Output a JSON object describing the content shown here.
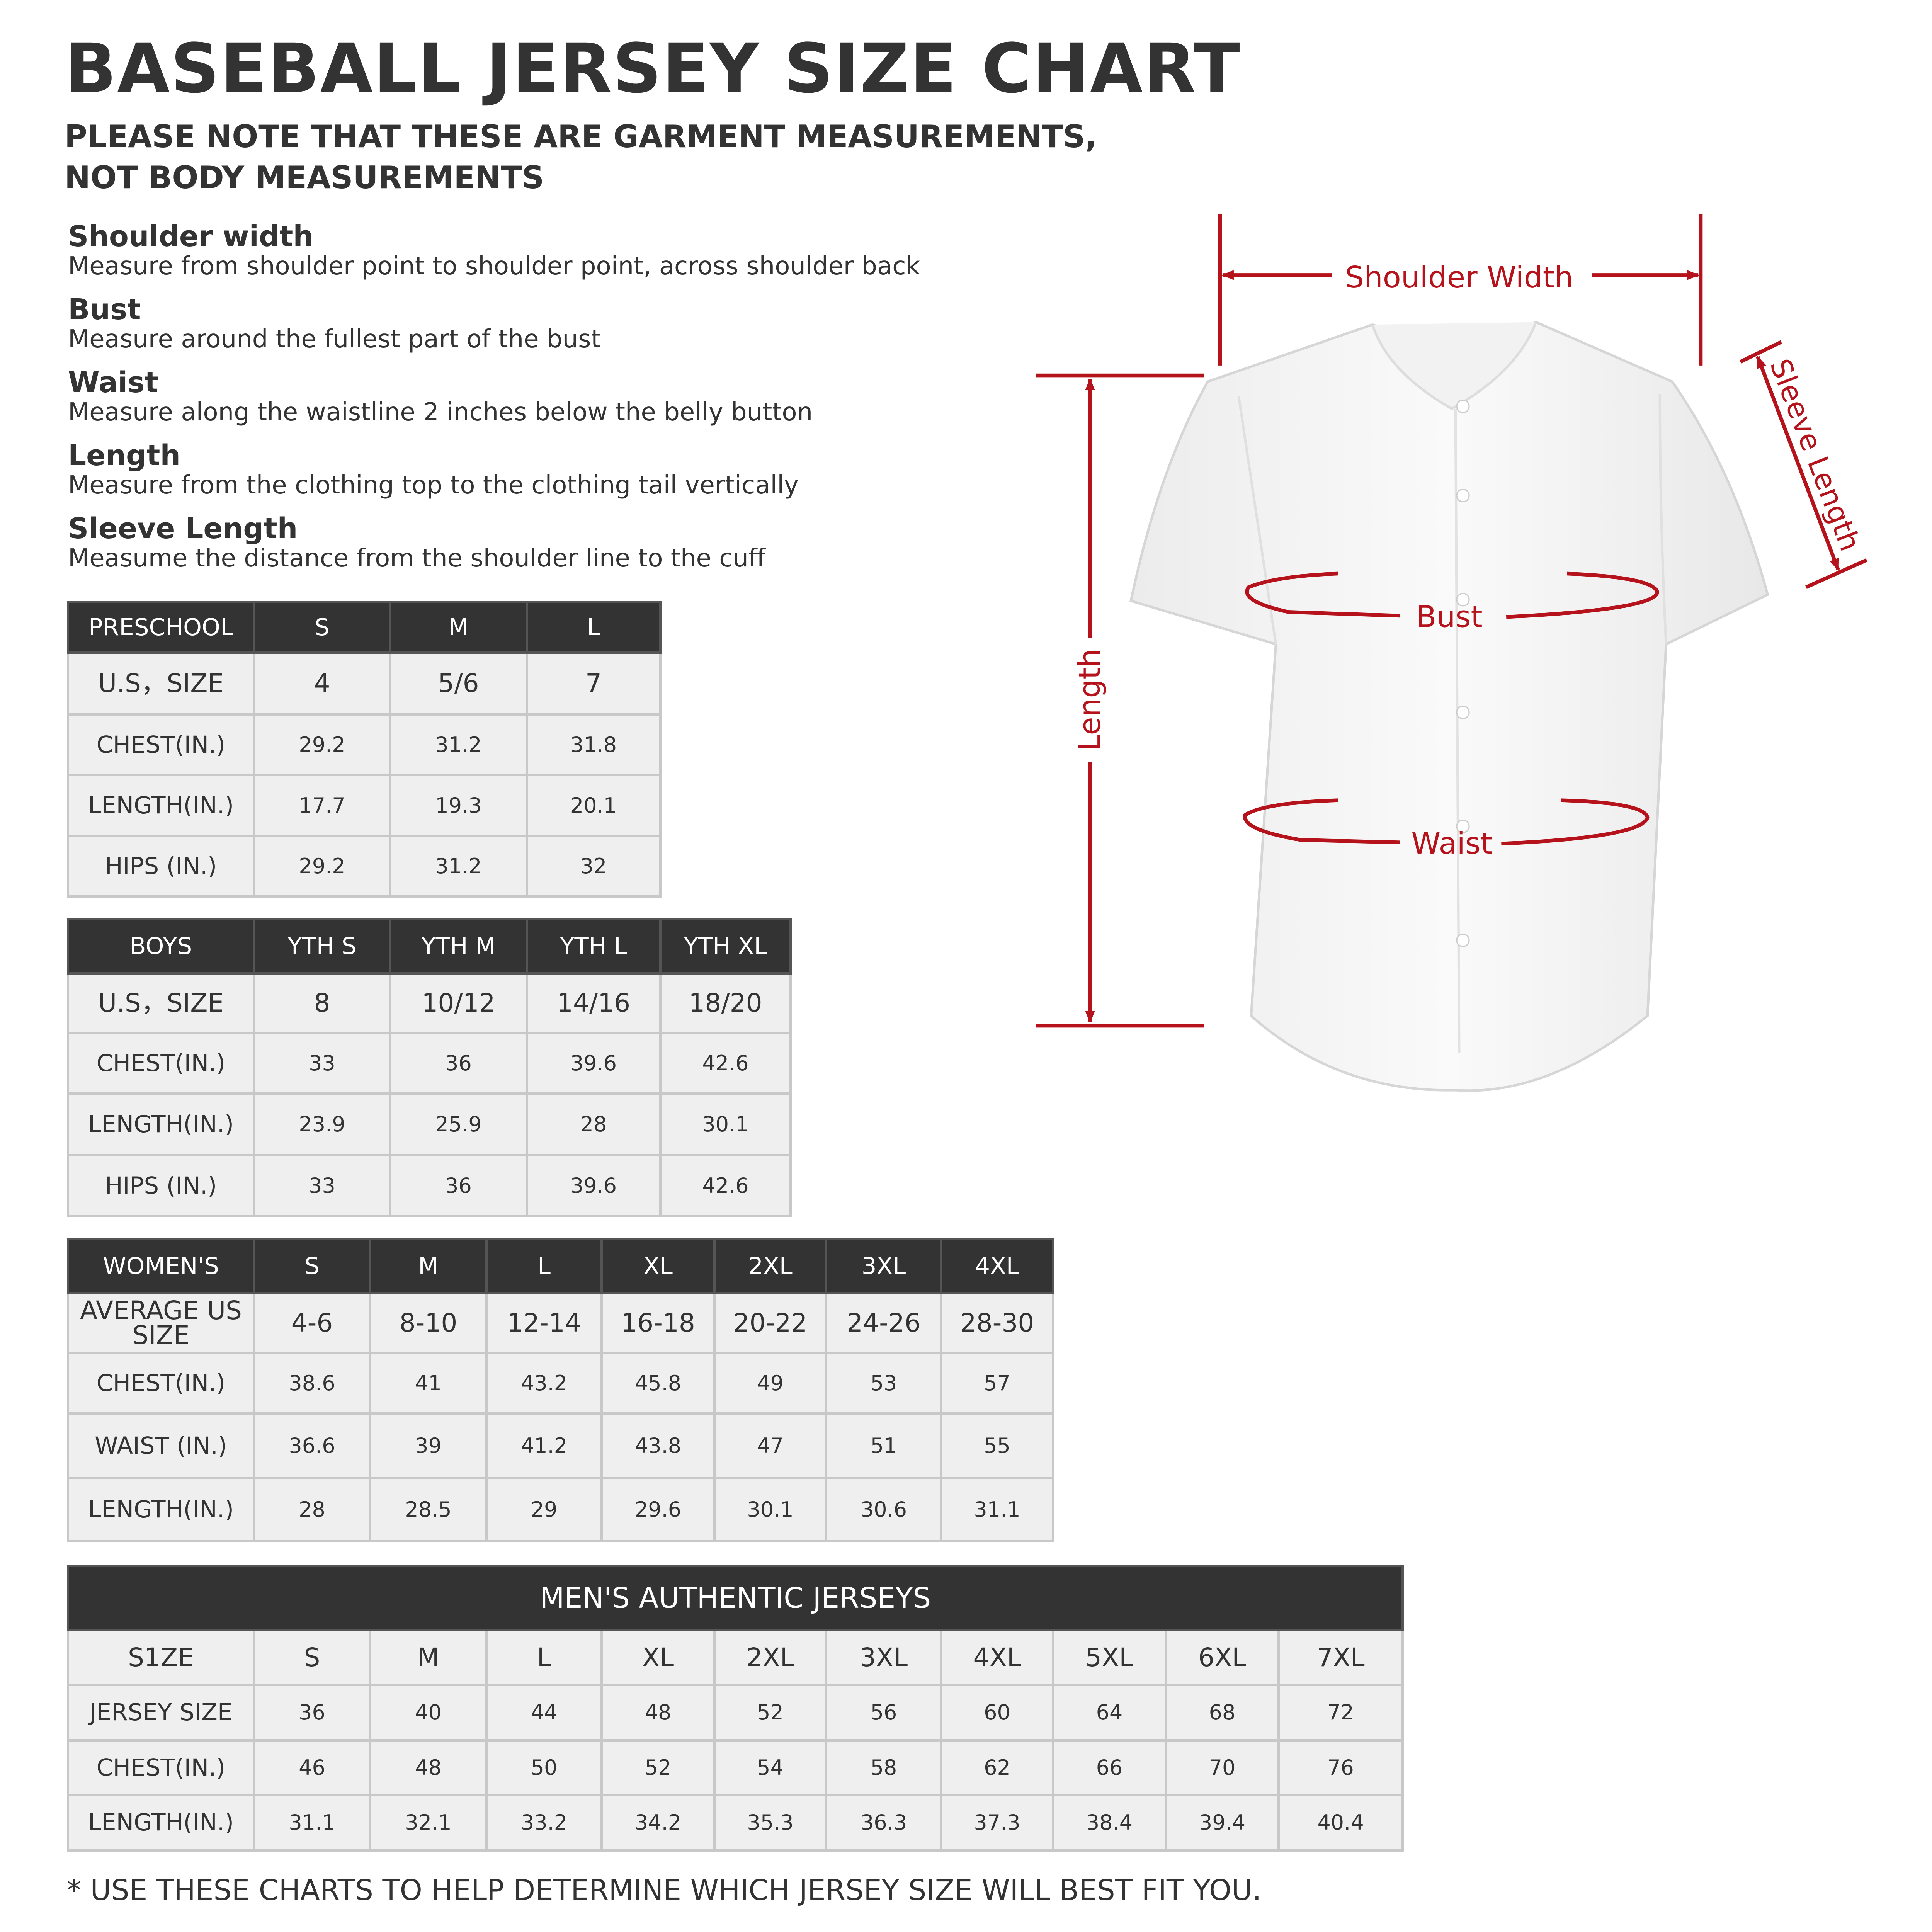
{
  "title": "BASEBALL JERSEY SIZE CHART",
  "subtitle": [
    "PLEASE NOTE THAT THESE ARE GARMENT MEASUREMENTS,",
    "NOT BODY MEASUREMENTS"
  ],
  "definitions": [
    {
      "term": "Shoulder width",
      "desc": "Measure from shoulder point to shoulder point, across shoulder back"
    },
    {
      "term": "Bust",
      "desc": "Measure around the fullest part of the bust"
    },
    {
      "term": "Waist",
      "desc": "Measure along the waistline 2 inches below the belly button"
    },
    {
      "term": "Length",
      "desc": "Measure from the clothing top to the clothing tail vertically"
    },
    {
      "term": "Sleeve Length",
      "desc": "Measume the distance from the shoulder line to the cuff"
    }
  ],
  "diagram": {
    "shoulder_width": "Shoulder Width",
    "sleeve_length": "Sleeve Length",
    "length": "Length",
    "bust": "Bust",
    "waist": "Waist",
    "accent_color": "#b5121b"
  },
  "tables": {
    "preschool": {
      "header": [
        "PRESCHOOL",
        "S",
        "M",
        "L"
      ],
      "rows": [
        [
          "U.S，SIZE",
          "4",
          "5/6",
          "7"
        ],
        [
          "CHEST(IN.)",
          "29.2",
          "31.2",
          "31.8"
        ],
        [
          "LENGTH(IN.)",
          "17.7",
          "19.3",
          "20.1"
        ],
        [
          "HIPS (IN.)",
          "29.2",
          "31.2",
          "32"
        ]
      ]
    },
    "boys": {
      "header": [
        "BOYS",
        "YTH S",
        "YTH M",
        "YTH L",
        "YTH XL"
      ],
      "rows": [
        [
          "U.S，SIZE",
          "8",
          "10/12",
          "14/16",
          "18/20"
        ],
        [
          "CHEST(IN.)",
          "33",
          "36",
          "39.6",
          "42.6"
        ],
        [
          "LENGTH(IN.)",
          "23.9",
          "25.9",
          "28",
          "30.1"
        ],
        [
          "HIPS (IN.)",
          "33",
          "36",
          "39.6",
          "42.6"
        ]
      ]
    },
    "womens": {
      "header": [
        "WOMEN'S",
        "S",
        "M",
        "L",
        "XL",
        "2XL",
        "3XL",
        "4XL"
      ],
      "rows": [
        [
          "AVERAGE US SIZE",
          "4-6",
          "8-10",
          "12-14",
          "16-18",
          "20-22",
          "24-26",
          "28-30"
        ],
        [
          "CHEST(IN.)",
          "38.6",
          "41",
          "43.2",
          "45.8",
          "49",
          "53",
          "57"
        ],
        [
          "WAIST (IN.)",
          "36.6",
          "39",
          "41.2",
          "43.8",
          "47",
          "51",
          "55"
        ],
        [
          "LENGTH(IN.)",
          "28",
          "28.5",
          "29",
          "29.6",
          "30.1",
          "30.6",
          "31.1"
        ]
      ]
    },
    "mens": {
      "title": "MEN'S AUTHENTIC JERSEYS",
      "rows": [
        [
          "S1ZE",
          "S",
          "M",
          "L",
          "XL",
          "2XL",
          "3XL",
          "4XL",
          "5XL",
          "6XL",
          "7XL"
        ],
        [
          "JERSEY SIZE",
          "36",
          "40",
          "44",
          "48",
          "52",
          "56",
          "60",
          "64",
          "68",
          "72"
        ],
        [
          "CHEST(IN.)",
          "46",
          "48",
          "50",
          "52",
          "54",
          "58",
          "62",
          "66",
          "70",
          "76"
        ],
        [
          "LENGTH(IN.)",
          "31.1",
          "32.1",
          "33.2",
          "34.2",
          "35.3",
          "36.3",
          "37.3",
          "38.4",
          "39.4",
          "40.4"
        ]
      ]
    }
  },
  "footer": "* USE THESE CHARTS TO HELP DETERMINE WHICH JERSEY SIZE WILL BEST FIT YOU."
}
